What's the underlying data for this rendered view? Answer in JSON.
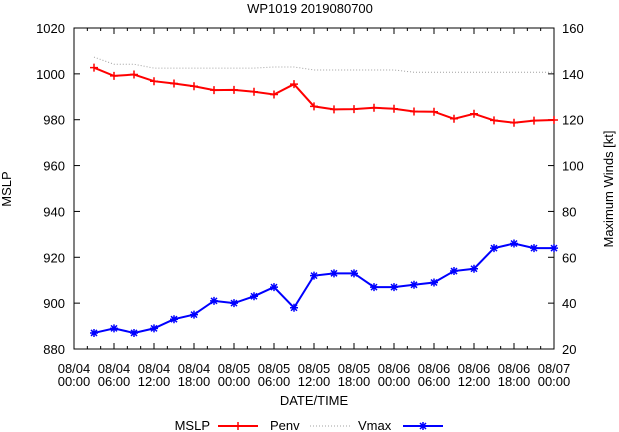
{
  "chart_data": {
    "type": "line",
    "title": "WP1019 2019080700",
    "xlabel": "DATE/TIME",
    "ylabel": "MSLP",
    "y2label": "Maximum Winds [kt]",
    "xlim_hours": [
      0,
      72
    ],
    "ylim": [
      880,
      1020
    ],
    "y2lim": [
      20,
      160
    ],
    "yticks": [
      880,
      900,
      920,
      940,
      960,
      980,
      1000,
      1020
    ],
    "y2ticks": [
      20,
      40,
      60,
      80,
      100,
      120,
      140,
      160
    ],
    "xticks": [
      {
        "hour": 0,
        "date": "08/04",
        "time": "00:00"
      },
      {
        "hour": 6,
        "date": "08/04",
        "time": "06:00"
      },
      {
        "hour": 12,
        "date": "08/04",
        "time": "12:00"
      },
      {
        "hour": 18,
        "date": "08/04",
        "time": "18:00"
      },
      {
        "hour": 24,
        "date": "08/05",
        "time": "00:00"
      },
      {
        "hour": 30,
        "date": "08/05",
        "time": "06:00"
      },
      {
        "hour": 36,
        "date": "08/05",
        "time": "12:00"
      },
      {
        "hour": 42,
        "date": "08/05",
        "time": "18:00"
      },
      {
        "hour": 48,
        "date": "08/06",
        "time": "00:00"
      },
      {
        "hour": 54,
        "date": "08/06",
        "time": "06:00"
      },
      {
        "hour": 60,
        "date": "08/06",
        "time": "12:00"
      },
      {
        "hour": 66,
        "date": "08/06",
        "time": "18:00"
      },
      {
        "hour": 72,
        "date": "08/07",
        "time": "00:00"
      }
    ],
    "x_hours": [
      3,
      6,
      9,
      12,
      15,
      18,
      21,
      24,
      27,
      30,
      33,
      36,
      39,
      42,
      45,
      48,
      51,
      54,
      57,
      60,
      63,
      66,
      69,
      72
    ],
    "series": [
      {
        "name": "MSLP",
        "axis": "left",
        "color": "#ff0000",
        "style": "line+plus",
        "values": [
          1002.7,
          999.1,
          999.7,
          996.8,
          995.8,
          994.6,
          992.9,
          993.0,
          992.2,
          991.0,
          995.5,
          985.8,
          984.5,
          984.6,
          985.2,
          984.8,
          983.6,
          983.5,
          980.4,
          982.6,
          979.7,
          978.7,
          979.6,
          979.9
        ]
      },
      {
        "name": "Penv",
        "axis": "left",
        "color": "#a0a0a0",
        "style": "dotted",
        "values": [
          1007.3,
          1004.2,
          1004.2,
          1002.5,
          1002.5,
          1002.5,
          1002.5,
          1002.5,
          1002.5,
          1003.0,
          1003.0,
          1001.7,
          1001.7,
          1001.7,
          1001.7,
          1001.7,
          1000.7,
          1000.7,
          1000.7,
          1000.7,
          1000.7,
          1000.7,
          1000.7,
          1000.7
        ]
      },
      {
        "name": "Vmax",
        "axis": "right",
        "color": "#0000ff",
        "style": "line+star",
        "values": [
          27,
          29,
          27,
          29,
          33,
          35,
          41,
          40,
          43,
          47,
          38,
          52,
          53,
          53,
          47,
          47,
          48,
          49,
          54,
          55,
          64,
          66,
          64,
          64
        ]
      }
    ],
    "legend": "bottom",
    "grid": false
  }
}
